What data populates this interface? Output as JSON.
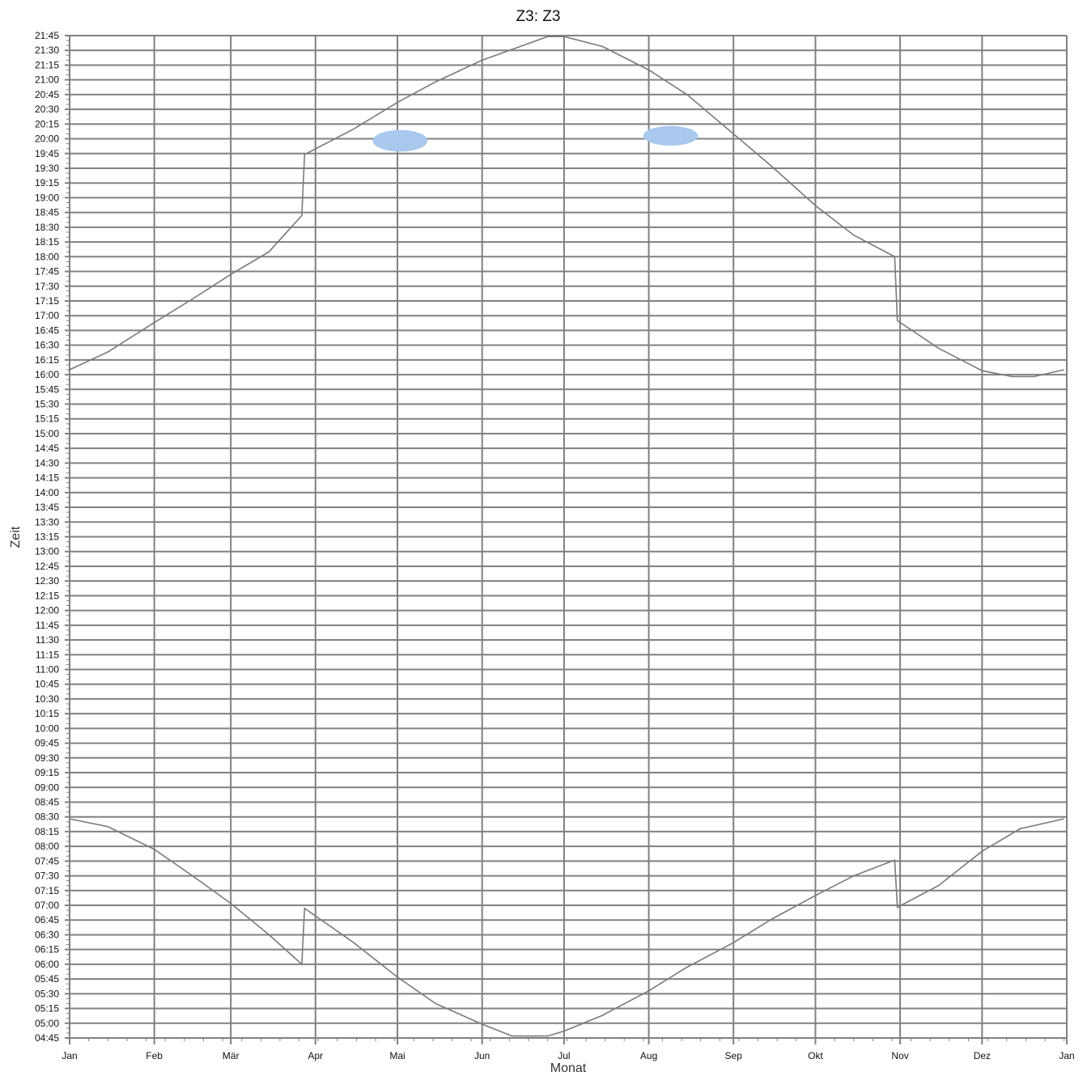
{
  "chart_data": {
    "type": "line",
    "title": "Z3: Z3",
    "xlabel": "Monat",
    "ylabel": "Zeit",
    "x_ticks": [
      "Jan",
      "Feb",
      "Mär",
      "Apr",
      "Mai",
      "Jun",
      "Jul",
      "Aug",
      "Sep",
      "Okt",
      "Nov",
      "Dez",
      "Jan"
    ],
    "x_tick_days": [
      0,
      31,
      59,
      90,
      120,
      151,
      181,
      212,
      243,
      273,
      304,
      334,
      365
    ],
    "y_ticks": [
      "04:45",
      "05:00",
      "05:15",
      "05:30",
      "05:45",
      "06:00",
      "06:15",
      "06:30",
      "06:45",
      "07:00",
      "07:15",
      "07:30",
      "07:45",
      "08:00",
      "08:15",
      "08:30",
      "08:45",
      "09:00",
      "09:15",
      "09:30",
      "09:45",
      "10:00",
      "10:15",
      "10:30",
      "10:45",
      "11:00",
      "11:15",
      "11:30",
      "11:45",
      "12:00",
      "12:15",
      "12:30",
      "12:45",
      "13:00",
      "13:15",
      "13:30",
      "13:45",
      "14:00",
      "14:15",
      "14:30",
      "14:45",
      "15:00",
      "15:15",
      "15:30",
      "15:45",
      "16:00",
      "16:15",
      "16:30",
      "16:45",
      "17:00",
      "17:15",
      "17:30",
      "17:45",
      "18:00",
      "18:15",
      "18:30",
      "18:45",
      "19:00",
      "19:15",
      "19:30",
      "19:45",
      "20:00",
      "20:15",
      "20:30",
      "20:45",
      "21:00",
      "21:15",
      "21:30",
      "21:45"
    ],
    "ylim": [
      "04:45",
      "21:45"
    ],
    "xlim": [
      "Jan",
      "Jan"
    ],
    "grid": true,
    "series": [
      {
        "color": "#7a7a7a",
        "points": [
          [
            "2021-01-01",
            "16:05"
          ],
          [
            "2021-01-15",
            "16:23"
          ],
          [
            "2021-02-01",
            "16:53"
          ],
          [
            "2021-02-15",
            "17:17"
          ],
          [
            "2021-03-01",
            "17:42"
          ],
          [
            "2021-03-15",
            "18:05"
          ],
          [
            "2021-03-27",
            "18:42"
          ],
          [
            "2021-03-28",
            "19:44"
          ],
          [
            "2021-04-15",
            "20:10"
          ],
          [
            "2021-05-01",
            "20:37"
          ],
          [
            "2021-05-15",
            "20:58"
          ],
          [
            "2021-06-01",
            "21:20"
          ],
          [
            "2021-06-15",
            "21:34"
          ],
          [
            "2021-06-25",
            "21:44"
          ],
          [
            "2021-07-01",
            "21:44"
          ],
          [
            "2021-07-15",
            "21:34"
          ],
          [
            "2021-08-01",
            "21:10"
          ],
          [
            "2021-08-15",
            "20:45"
          ],
          [
            "2021-09-01",
            "20:05"
          ],
          [
            "2021-09-15",
            "19:32"
          ],
          [
            "2021-10-01",
            "18:52"
          ],
          [
            "2021-10-15",
            "18:22"
          ],
          [
            "2021-10-30",
            "18:00"
          ],
          [
            "2021-10-31",
            "16:55"
          ],
          [
            "2021-11-15",
            "16:27"
          ],
          [
            "2021-12-01",
            "16:04"
          ],
          [
            "2021-12-12",
            "15:58"
          ],
          [
            "2021-12-20",
            "15:58"
          ],
          [
            "2021-12-31",
            "16:05"
          ]
        ]
      },
      {
        "color": "#7a7a7a",
        "points": [
          [
            "2021-01-01",
            "08:28"
          ],
          [
            "2021-01-15",
            "08:20"
          ],
          [
            "2021-02-01",
            "07:57"
          ],
          [
            "2021-02-15",
            "07:30"
          ],
          [
            "2021-03-01",
            "07:02"
          ],
          [
            "2021-03-15",
            "06:30"
          ],
          [
            "2021-03-27",
            "06:00"
          ],
          [
            "2021-03-28",
            "06:57"
          ],
          [
            "2021-04-15",
            "06:22"
          ],
          [
            "2021-05-01",
            "05:47"
          ],
          [
            "2021-05-15",
            "05:20"
          ],
          [
            "2021-06-01",
            "04:59"
          ],
          [
            "2021-06-12",
            "04:47"
          ],
          [
            "2021-06-25",
            "04:47"
          ],
          [
            "2021-07-01",
            "04:52"
          ],
          [
            "2021-07-15",
            "05:08"
          ],
          [
            "2021-08-01",
            "05:33"
          ],
          [
            "2021-08-15",
            "05:57"
          ],
          [
            "2021-09-01",
            "06:22"
          ],
          [
            "2021-09-15",
            "06:46"
          ],
          [
            "2021-10-01",
            "07:10"
          ],
          [
            "2021-10-15",
            "07:30"
          ],
          [
            "2021-10-30",
            "07:46"
          ],
          [
            "2021-10-31",
            "06:58"
          ],
          [
            "2021-11-15",
            "07:20"
          ],
          [
            "2021-12-01",
            "07:55"
          ],
          [
            "2021-12-15",
            "08:18"
          ],
          [
            "2021-12-31",
            "08:28"
          ]
        ]
      }
    ],
    "shaded_regions": [
      {
        "color": "#a8c8ee",
        "center": [
          "2021-05-02",
          "19:58"
        ],
        "half_width_days": 10,
        "half_height_minutes": 11
      },
      {
        "color": "#a8c8ee",
        "center": [
          "2021-08-09",
          "20:03"
        ],
        "half_width_days": 10,
        "half_height_minutes": 10
      }
    ]
  }
}
